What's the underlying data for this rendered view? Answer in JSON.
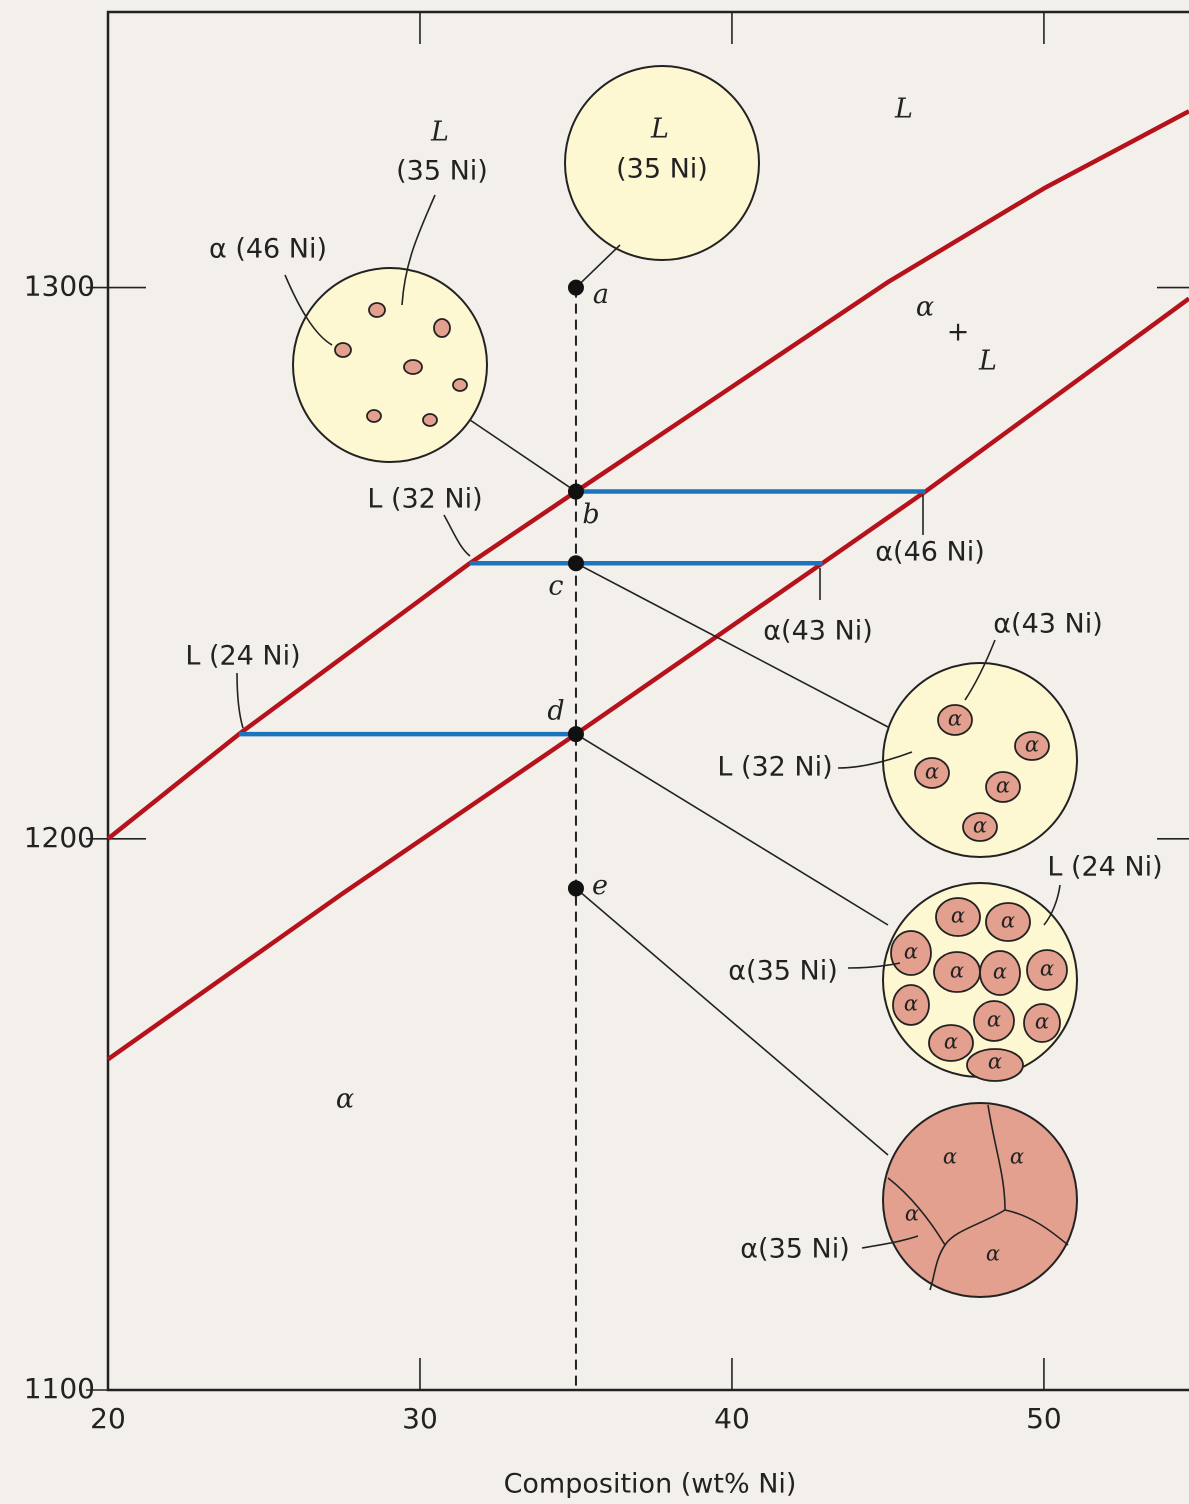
{
  "chart_data": {
    "type": "line",
    "xlabel": "Composition (wt% Ni)",
    "xlim": [
      20,
      54.65
    ],
    "ylim": [
      1100,
      1350
    ],
    "xticks": [
      20,
      30,
      40,
      50
    ],
    "yticks": [
      1100,
      1200,
      1300
    ],
    "series": [
      {
        "color": "#b5121b",
        "x": [
          20,
          24.2,
          31.6,
          35,
          40,
          45,
          50,
          54.65
        ],
        "values": [
          1200,
          1219,
          1250,
          1263,
          1282,
          1301,
          1318,
          1332
        ]
      },
      {
        "color": "#b5121b",
        "x": [
          20,
          27.5,
          35,
          42.9,
          46.2,
          54.65
        ],
        "values": [
          1160,
          1190,
          1219,
          1250,
          1263,
          1298
        ]
      },
      {
        "color": "#1b75bc",
        "x": [
          35,
          46.2
        ],
        "values": [
          1263,
          1263
        ]
      },
      {
        "color": "#1b75bc",
        "x": [
          31.6,
          42.9
        ],
        "values": [
          1250,
          1250
        ]
      },
      {
        "color": "#1b75bc",
        "x": [
          24.2,
          35
        ],
        "values": [
          1219,
          1219
        ]
      }
    ],
    "points": {
      "color": "#111",
      "x": [
        35,
        35,
        35,
        35,
        35
      ],
      "values": [
        1300,
        1263,
        1250,
        1219,
        1191
      ],
      "labels": [
        "a",
        "b",
        "c",
        "d",
        "e"
      ]
    },
    "annotations": [
      "L",
      "(35 Ni)",
      "L",
      "(35 Ni)",
      "α (46 Ni)",
      "L",
      "α",
      "+",
      "L",
      "L (32 Ni)",
      "α(46 Ni)",
      "α(43 Ni)",
      "L (24 Ni)",
      "α(43 Ni)",
      "L (32 Ni)",
      "L (24 Ni)",
      "α(35 Ni)",
      "α(35 Ni)",
      "α",
      "α",
      "α",
      "α",
      "α",
      "α",
      "α",
      "α",
      "α",
      "α",
      "α",
      "α",
      "α",
      "α",
      "α",
      "α",
      "α",
      "α",
      "α",
      "α",
      "α"
    ]
  }
}
